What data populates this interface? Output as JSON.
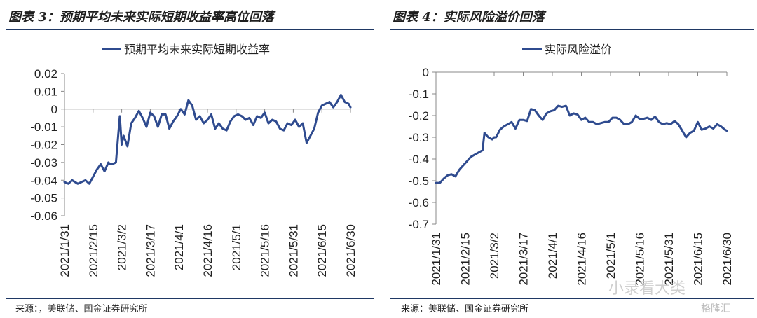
{
  "panels": [
    {
      "title": "图表 3：预期平均未来实际短期收益率高位回落",
      "source": "来源：，美联储、国金证券研究所"
    },
    {
      "title": "图表 4：实际风险溢价回落",
      "source": "来源：美联储、国金证券研究所"
    }
  ],
  "watermark": "小录看大类",
  "logo_text": "格隆汇",
  "colors": {
    "line": "#2f4b8f",
    "axis": "#888888",
    "title_rule": "#1f3864"
  },
  "chart_data": [
    {
      "type": "line",
      "title": "",
      "xlabel": "",
      "ylabel": "",
      "legend_position": "top-center",
      "grid": false,
      "categories": [
        "2021/1/31",
        "2021/2/15",
        "2021/3/2",
        "2021/3/17",
        "2021/4/1",
        "2021/4/16",
        "2021/5/1",
        "2021/5/16",
        "2021/5/31",
        "2021/6/15",
        "2021/6/30"
      ],
      "ylim": [
        -0.06,
        0.02
      ],
      "yticks": [
        "0.02",
        "0.01",
        "0",
        "-0.01",
        "-0.02",
        "-0.03",
        "-0.04",
        "-0.05",
        "-0.06"
      ],
      "series": [
        {
          "name": "预期平均未来实际短期收益率",
          "x": [
            0,
            2,
            4,
            7,
            9,
            11,
            13,
            15,
            17,
            19,
            21,
            23,
            24,
            25,
            27,
            29,
            30,
            31,
            33,
            35,
            37,
            39,
            41,
            43,
            45,
            47,
            49,
            51,
            53,
            55,
            57,
            59,
            61,
            63,
            65,
            67,
            69,
            71,
            73,
            75,
            77,
            79,
            81,
            83,
            85,
            87,
            89,
            91,
            93,
            95,
            97,
            99,
            101,
            103,
            105,
            107,
            109,
            111,
            113,
            115,
            117,
            119,
            121,
            123,
            125,
            127,
            129,
            131,
            133,
            135,
            137,
            139,
            141,
            143,
            145,
            147,
            149,
            150
          ],
          "values": [
            -0.041,
            -0.042,
            -0.04,
            -0.042,
            -0.041,
            -0.04,
            -0.042,
            -0.038,
            -0.034,
            -0.031,
            -0.035,
            -0.03,
            -0.031,
            -0.031,
            -0.03,
            -0.004,
            -0.02,
            -0.015,
            -0.021,
            -0.008,
            -0.005,
            -0.001,
            -0.005,
            -0.01,
            -0.002,
            -0.004,
            -0.01,
            -0.003,
            -0.003,
            -0.011,
            -0.007,
            -0.004,
            0,
            -0.003,
            0.005,
            0.002,
            -0.006,
            -0.004,
            -0.008,
            -0.006,
            -0.003,
            -0.011,
            -0.008,
            -0.011,
            -0.012,
            -0.007,
            -0.004,
            -0.003,
            -0.004,
            -0.006,
            -0.005,
            -0.009,
            -0.004,
            -0.005,
            -0.002,
            -0.008,
            -0.006,
            -0.007,
            -0.011,
            -0.012,
            -0.008,
            -0.009,
            -0.006,
            -0.01,
            -0.008,
            -0.019,
            -0.015,
            -0.011,
            -0.002,
            0.002,
            0.003,
            0.004,
            0.001,
            0.004,
            0.008,
            0.004,
            0.003,
            0.001
          ]
        }
      ]
    },
    {
      "type": "line",
      "title": "",
      "xlabel": "",
      "ylabel": "",
      "legend_position": "top-center",
      "grid": false,
      "categories": [
        "2021/1/31",
        "2021/2/15",
        "2021/3/2",
        "2021/3/17",
        "2021/4/1",
        "2021/4/16",
        "2021/5/1",
        "2021/5/16",
        "2021/5/31",
        "2021/6/15",
        "2021/6/30"
      ],
      "ylim": [
        -0.7,
        0
      ],
      "yticks": [
        "0",
        "-0.1",
        "-0.2",
        "-0.3",
        "-0.4",
        "-0.5",
        "-0.6",
        "-0.7"
      ],
      "series": [
        {
          "name": "实际风险溢价",
          "x": [
            0,
            2,
            4,
            6,
            8,
            10,
            12,
            14,
            16,
            18,
            20,
            22,
            24,
            25,
            27,
            29,
            30,
            31,
            33,
            35,
            37,
            39,
            41,
            43,
            45,
            47,
            49,
            51,
            53,
            55,
            57,
            59,
            61,
            63,
            65,
            67,
            69,
            71,
            73,
            75,
            77,
            79,
            81,
            83,
            85,
            87,
            89,
            91,
            93,
            95,
            97,
            99,
            101,
            103,
            105,
            107,
            109,
            111,
            113,
            115,
            117,
            119,
            121,
            123,
            125,
            127,
            129,
            131,
            133,
            135,
            137,
            139,
            141,
            143,
            145,
            147,
            149,
            150
          ],
          "values": [
            -0.51,
            -0.51,
            -0.49,
            -0.475,
            -0.47,
            -0.48,
            -0.45,
            -0.43,
            -0.41,
            -0.39,
            -0.38,
            -0.37,
            -0.36,
            -0.28,
            -0.3,
            -0.31,
            -0.3,
            -0.3,
            -0.265,
            -0.25,
            -0.24,
            -0.23,
            -0.26,
            -0.22,
            -0.22,
            -0.225,
            -0.17,
            -0.175,
            -0.2,
            -0.22,
            -0.19,
            -0.18,
            -0.175,
            -0.155,
            -0.16,
            -0.155,
            -0.2,
            -0.19,
            -0.195,
            -0.22,
            -0.21,
            -0.23,
            -0.23,
            -0.24,
            -0.235,
            -0.23,
            -0.23,
            -0.21,
            -0.21,
            -0.22,
            -0.24,
            -0.24,
            -0.23,
            -0.2,
            -0.215,
            -0.215,
            -0.21,
            -0.22,
            -0.205,
            -0.23,
            -0.24,
            -0.235,
            -0.24,
            -0.225,
            -0.24,
            -0.27,
            -0.3,
            -0.28,
            -0.27,
            -0.23,
            -0.265,
            -0.26,
            -0.25,
            -0.26,
            -0.24,
            -0.25,
            -0.265,
            -0.27
          ]
        }
      ]
    }
  ]
}
